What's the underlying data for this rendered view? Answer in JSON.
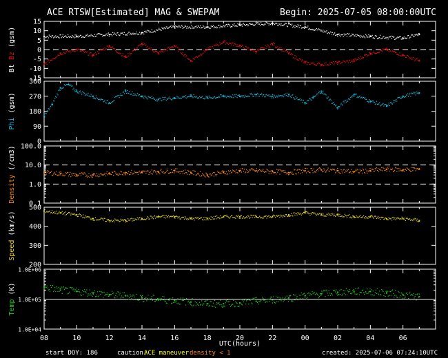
{
  "header": {
    "title": "ACE RTSW[Estimated] MAG & SWEPAM",
    "begin": "Begin: 2025-07-05 08:00:00UTC"
  },
  "footer": {
    "start_doy": "start DOY: 186",
    "caution_label": "caution:",
    "caution_maneuver": "ACE maneuver",
    "caution_density": "density < 1",
    "created": "created: 2025-07-06 07:24:10UTC"
  },
  "colors": {
    "background": "#000000",
    "frame": "#ffffff",
    "bt": "#ffffff",
    "bz": "#e01010",
    "phi": "#19b8d8",
    "density": "#ff8a10",
    "speed": "#e8d820",
    "temp": "#20c820",
    "maneuver": "#ffff00",
    "density_caution": "#ff8a10"
  },
  "chart_data": [
    {
      "type": "scatter",
      "ylabel_parts": [
        "Bt",
        "Bz",
        "(gsm)"
      ],
      "scale": "linear",
      "ylim": [
        -15,
        15
      ],
      "yticks": [
        "15",
        "10",
        "5",
        "0",
        "-5",
        "-10",
        "-15"
      ],
      "reference_lines": [
        0
      ],
      "series": [
        {
          "name": "Bt",
          "color": "#ffffff",
          "x": [
            0,
            2,
            4,
            6,
            8,
            10,
            12,
            14,
            16,
            18,
            20,
            22,
            23
          ],
          "y": [
            7,
            7,
            8,
            9,
            12,
            12,
            13,
            14,
            12,
            8,
            7,
            6,
            8
          ]
        },
        {
          "name": "Bz",
          "color": "#e01010",
          "x": [
            0,
            1,
            2,
            3,
            4,
            5,
            6,
            7,
            8,
            9,
            10,
            11,
            12,
            13,
            14,
            15,
            16,
            17,
            18,
            19,
            20,
            21,
            22,
            23
          ],
          "y": [
            -8,
            -2,
            0,
            -3,
            2,
            -4,
            3,
            -2,
            2,
            -6,
            0,
            4,
            2,
            -1,
            3,
            -2,
            -7,
            -8,
            -7,
            -6,
            -2,
            0,
            -3,
            -6
          ]
        }
      ]
    },
    {
      "type": "scatter",
      "ylabel_parts": [
        "Phi",
        "(gsm)"
      ],
      "scale": "linear",
      "ylim": [
        0,
        360
      ],
      "yticks": [
        "360",
        "270",
        "180",
        "90",
        "0"
      ],
      "reference_lines": [],
      "series": [
        {
          "name": "Phi",
          "color": "#19b8d8",
          "x": [
            0,
            0.5,
            1,
            1.5,
            2,
            3,
            4,
            5,
            6,
            7,
            8,
            9,
            10,
            11,
            12,
            13,
            14,
            15,
            16,
            16.5,
            17,
            18,
            19,
            20,
            21,
            22,
            23
          ],
          "y": [
            150,
            220,
            320,
            340,
            300,
            270,
            230,
            300,
            270,
            250,
            260,
            270,
            260,
            270,
            270,
            280,
            270,
            280,
            230,
            260,
            300,
            200,
            280,
            240,
            210,
            270,
            290
          ]
        }
      ]
    },
    {
      "type": "scatter",
      "ylabel_parts": [
        "Density",
        "(/cm3)"
      ],
      "scale": "log",
      "ylim": [
        0.1,
        100
      ],
      "yticks": [
        "100.0",
        "10.0",
        "1.0",
        "0.1"
      ],
      "reference_lines": [
        10,
        1
      ],
      "series": [
        {
          "name": "Density",
          "color": "#ff8a10",
          "x": [
            0,
            1,
            2,
            3,
            4,
            5,
            6,
            7,
            8,
            9,
            10,
            11,
            12,
            13,
            14,
            15,
            16,
            17,
            18,
            19,
            20,
            21,
            22,
            23
          ],
          "y": [
            4,
            3.5,
            3,
            3,
            3.5,
            4,
            4,
            4.5,
            5,
            4,
            3,
            4,
            5,
            5,
            4.5,
            4,
            5,
            5.5,
            5,
            4.5,
            5,
            6,
            5.5,
            6
          ]
        }
      ]
    },
    {
      "type": "scatter",
      "ylabel_parts": [
        "Speed",
        "(km/s)"
      ],
      "scale": "linear",
      "ylim": [
        200,
        500
      ],
      "yticks": [
        "500",
        "400",
        "300",
        "200"
      ],
      "reference_lines": [],
      "series": [
        {
          "name": "Speed",
          "color": "#e8d820",
          "x": [
            0,
            1,
            2,
            3,
            4,
            5,
            6,
            7,
            8,
            9,
            10,
            11,
            12,
            13,
            14,
            15,
            16,
            17,
            18,
            19,
            20,
            21,
            22,
            23
          ],
          "y": [
            480,
            470,
            460,
            440,
            430,
            430,
            440,
            450,
            450,
            440,
            440,
            450,
            450,
            450,
            450,
            460,
            470,
            460,
            460,
            450,
            450,
            440,
            440,
            430
          ]
        }
      ]
    },
    {
      "type": "scatter",
      "ylabel_parts": [
        "Temp",
        "(K)"
      ],
      "scale": "log",
      "ylim": [
        10000,
        1000000
      ],
      "yticks": [
        "1.0E+06",
        "1.0E+05",
        "1.0E+04"
      ],
      "reference_lines": [
        100000
      ],
      "series": [
        {
          "name": "Temp",
          "color": "#20c820",
          "x": [
            0,
            1,
            2,
            3,
            4,
            5,
            6,
            7,
            8,
            9,
            10,
            11,
            12,
            13,
            14,
            15,
            16,
            17,
            18,
            19,
            20,
            21,
            22,
            23
          ],
          "y": [
            250000,
            200000,
            180000,
            160000,
            140000,
            130000,
            110000,
            100000,
            90000,
            80000,
            70000,
            70000,
            75000,
            85000,
            95000,
            110000,
            130000,
            150000,
            170000,
            180000,
            180000,
            160000,
            140000,
            120000
          ]
        }
      ]
    }
  ],
  "x_axis": {
    "xlim": [
      0,
      24
    ],
    "tick_positions": [
      0,
      2,
      4,
      6,
      8,
      10,
      12,
      14,
      16,
      18,
      20,
      22
    ],
    "tick_labels": [
      "08",
      "10",
      "12",
      "14",
      "16",
      "18",
      "20",
      "22",
      "00",
      "02",
      "04",
      "06"
    ],
    "label": "UTC(hours)"
  }
}
